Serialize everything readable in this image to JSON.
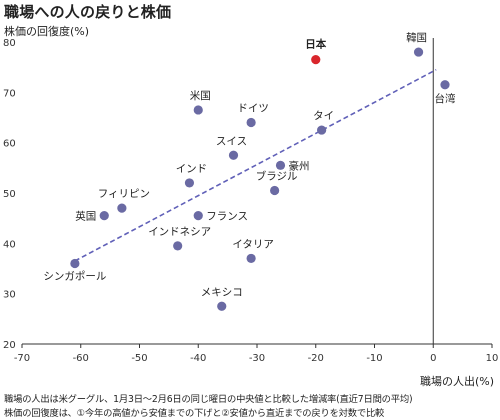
{
  "chart_data": {
    "type": "scatter",
    "title": "職場への人の戻りと株価",
    "ylabel": "株価の回復度(%)",
    "xlabel": "職場の人出(%)",
    "xlim": [
      -70,
      10
    ],
    "ylim": [
      20,
      80
    ],
    "xticks": [
      -70,
      -60,
      -50,
      -40,
      -30,
      -20,
      -10,
      0,
      10
    ],
    "yticks": [
      20,
      30,
      40,
      50,
      60,
      70,
      80
    ],
    "grid": false,
    "highlight_color": "#d9262c",
    "point_color": "#6a6aa3",
    "trend_color": "#6060b8",
    "trendline": {
      "x": [
        -61,
        0.5
      ],
      "y": [
        36.5,
        74.5
      ]
    },
    "points": [
      {
        "label": "日本",
        "x": -20,
        "y": 76.5,
        "highlight": true
      },
      {
        "label": "韓国",
        "x": -2.5,
        "y": 78
      },
      {
        "label": "台湾",
        "x": 2,
        "y": 71.5
      },
      {
        "label": "米国",
        "x": -40,
        "y": 66.5
      },
      {
        "label": "ドイツ",
        "x": -31,
        "y": 64
      },
      {
        "label": "タイ",
        "x": -19,
        "y": 62.5
      },
      {
        "label": "スイス",
        "x": -34,
        "y": 57.5
      },
      {
        "label": "豪州",
        "x": -26,
        "y": 55.5
      },
      {
        "label": "インド",
        "x": -41.5,
        "y": 52
      },
      {
        "label": "ブラジル",
        "x": -27,
        "y": 50.5
      },
      {
        "label": "フィリピン",
        "x": -53,
        "y": 47
      },
      {
        "label": "英国",
        "x": -56,
        "y": 45.5
      },
      {
        "label": "フランス",
        "x": -40,
        "y": 45.5
      },
      {
        "label": "インドネシア",
        "x": -43.5,
        "y": 39.5
      },
      {
        "label": "イタリア",
        "x": -31,
        "y": 37
      },
      {
        "label": "シンガポール",
        "x": -61,
        "y": 36
      },
      {
        "label": "メキシコ",
        "x": -36,
        "y": 27.5
      }
    ]
  },
  "notes": [
    "職場の人出は米グーグル、1月3日～2月6日の同じ曜日の中央値と比較した増減率(直近7日間の平均)",
    "株価の回復度は、①今年の高値から安値までの下げと②安値から直近までの戻りを対数で比較"
  ]
}
